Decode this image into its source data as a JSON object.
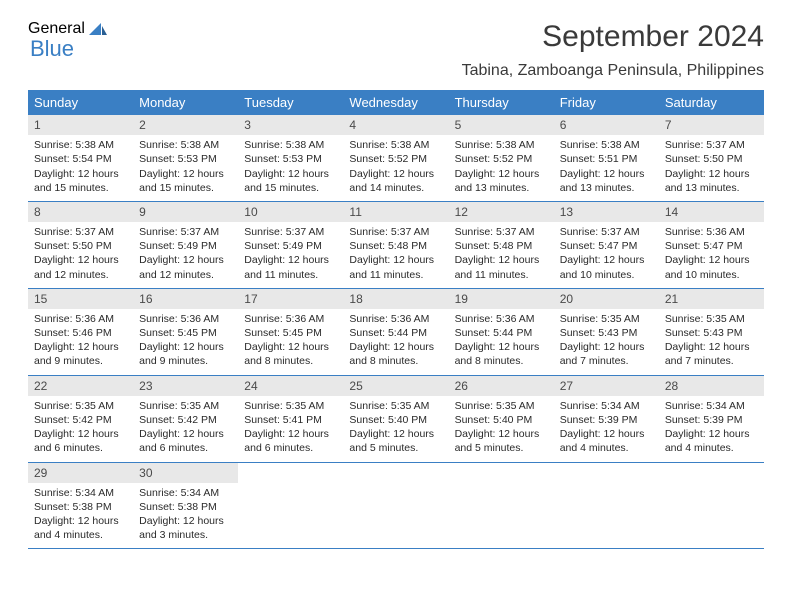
{
  "logo": {
    "text1": "General",
    "text2": "Blue"
  },
  "title": "September 2024",
  "subtitle": "Tabina, Zamboanga Peninsula, Philippines",
  "dayHeaders": [
    "Sunday",
    "Monday",
    "Tuesday",
    "Wednesday",
    "Thursday",
    "Friday",
    "Saturday"
  ],
  "colors": {
    "headerBg": "#3a7fc4",
    "headerText": "#ffffff",
    "daynumBg": "#e8e8e8",
    "borderColor": "#3a7fc4"
  },
  "weeks": [
    [
      {
        "n": "1",
        "sr": "Sunrise: 5:38 AM",
        "ss": "Sunset: 5:54 PM",
        "dl": "Daylight: 12 hours and 15 minutes."
      },
      {
        "n": "2",
        "sr": "Sunrise: 5:38 AM",
        "ss": "Sunset: 5:53 PM",
        "dl": "Daylight: 12 hours and 15 minutes."
      },
      {
        "n": "3",
        "sr": "Sunrise: 5:38 AM",
        "ss": "Sunset: 5:53 PM",
        "dl": "Daylight: 12 hours and 15 minutes."
      },
      {
        "n": "4",
        "sr": "Sunrise: 5:38 AM",
        "ss": "Sunset: 5:52 PM",
        "dl": "Daylight: 12 hours and 14 minutes."
      },
      {
        "n": "5",
        "sr": "Sunrise: 5:38 AM",
        "ss": "Sunset: 5:52 PM",
        "dl": "Daylight: 12 hours and 13 minutes."
      },
      {
        "n": "6",
        "sr": "Sunrise: 5:38 AM",
        "ss": "Sunset: 5:51 PM",
        "dl": "Daylight: 12 hours and 13 minutes."
      },
      {
        "n": "7",
        "sr": "Sunrise: 5:37 AM",
        "ss": "Sunset: 5:50 PM",
        "dl": "Daylight: 12 hours and 13 minutes."
      }
    ],
    [
      {
        "n": "8",
        "sr": "Sunrise: 5:37 AM",
        "ss": "Sunset: 5:50 PM",
        "dl": "Daylight: 12 hours and 12 minutes."
      },
      {
        "n": "9",
        "sr": "Sunrise: 5:37 AM",
        "ss": "Sunset: 5:49 PM",
        "dl": "Daylight: 12 hours and 12 minutes."
      },
      {
        "n": "10",
        "sr": "Sunrise: 5:37 AM",
        "ss": "Sunset: 5:49 PM",
        "dl": "Daylight: 12 hours and 11 minutes."
      },
      {
        "n": "11",
        "sr": "Sunrise: 5:37 AM",
        "ss": "Sunset: 5:48 PM",
        "dl": "Daylight: 12 hours and 11 minutes."
      },
      {
        "n": "12",
        "sr": "Sunrise: 5:37 AM",
        "ss": "Sunset: 5:48 PM",
        "dl": "Daylight: 12 hours and 11 minutes."
      },
      {
        "n": "13",
        "sr": "Sunrise: 5:37 AM",
        "ss": "Sunset: 5:47 PM",
        "dl": "Daylight: 12 hours and 10 minutes."
      },
      {
        "n": "14",
        "sr": "Sunrise: 5:36 AM",
        "ss": "Sunset: 5:47 PM",
        "dl": "Daylight: 12 hours and 10 minutes."
      }
    ],
    [
      {
        "n": "15",
        "sr": "Sunrise: 5:36 AM",
        "ss": "Sunset: 5:46 PM",
        "dl": "Daylight: 12 hours and 9 minutes."
      },
      {
        "n": "16",
        "sr": "Sunrise: 5:36 AM",
        "ss": "Sunset: 5:45 PM",
        "dl": "Daylight: 12 hours and 9 minutes."
      },
      {
        "n": "17",
        "sr": "Sunrise: 5:36 AM",
        "ss": "Sunset: 5:45 PM",
        "dl": "Daylight: 12 hours and 8 minutes."
      },
      {
        "n": "18",
        "sr": "Sunrise: 5:36 AM",
        "ss": "Sunset: 5:44 PM",
        "dl": "Daylight: 12 hours and 8 minutes."
      },
      {
        "n": "19",
        "sr": "Sunrise: 5:36 AM",
        "ss": "Sunset: 5:44 PM",
        "dl": "Daylight: 12 hours and 8 minutes."
      },
      {
        "n": "20",
        "sr": "Sunrise: 5:35 AM",
        "ss": "Sunset: 5:43 PM",
        "dl": "Daylight: 12 hours and 7 minutes."
      },
      {
        "n": "21",
        "sr": "Sunrise: 5:35 AM",
        "ss": "Sunset: 5:43 PM",
        "dl": "Daylight: 12 hours and 7 minutes."
      }
    ],
    [
      {
        "n": "22",
        "sr": "Sunrise: 5:35 AM",
        "ss": "Sunset: 5:42 PM",
        "dl": "Daylight: 12 hours and 6 minutes."
      },
      {
        "n": "23",
        "sr": "Sunrise: 5:35 AM",
        "ss": "Sunset: 5:42 PM",
        "dl": "Daylight: 12 hours and 6 minutes."
      },
      {
        "n": "24",
        "sr": "Sunrise: 5:35 AM",
        "ss": "Sunset: 5:41 PM",
        "dl": "Daylight: 12 hours and 6 minutes."
      },
      {
        "n": "25",
        "sr": "Sunrise: 5:35 AM",
        "ss": "Sunset: 5:40 PM",
        "dl": "Daylight: 12 hours and 5 minutes."
      },
      {
        "n": "26",
        "sr": "Sunrise: 5:35 AM",
        "ss": "Sunset: 5:40 PM",
        "dl": "Daylight: 12 hours and 5 minutes."
      },
      {
        "n": "27",
        "sr": "Sunrise: 5:34 AM",
        "ss": "Sunset: 5:39 PM",
        "dl": "Daylight: 12 hours and 4 minutes."
      },
      {
        "n": "28",
        "sr": "Sunrise: 5:34 AM",
        "ss": "Sunset: 5:39 PM",
        "dl": "Daylight: 12 hours and 4 minutes."
      }
    ],
    [
      {
        "n": "29",
        "sr": "Sunrise: 5:34 AM",
        "ss": "Sunset: 5:38 PM",
        "dl": "Daylight: 12 hours and 4 minutes."
      },
      {
        "n": "30",
        "sr": "Sunrise: 5:34 AM",
        "ss": "Sunset: 5:38 PM",
        "dl": "Daylight: 12 hours and 3 minutes."
      },
      null,
      null,
      null,
      null,
      null
    ]
  ]
}
